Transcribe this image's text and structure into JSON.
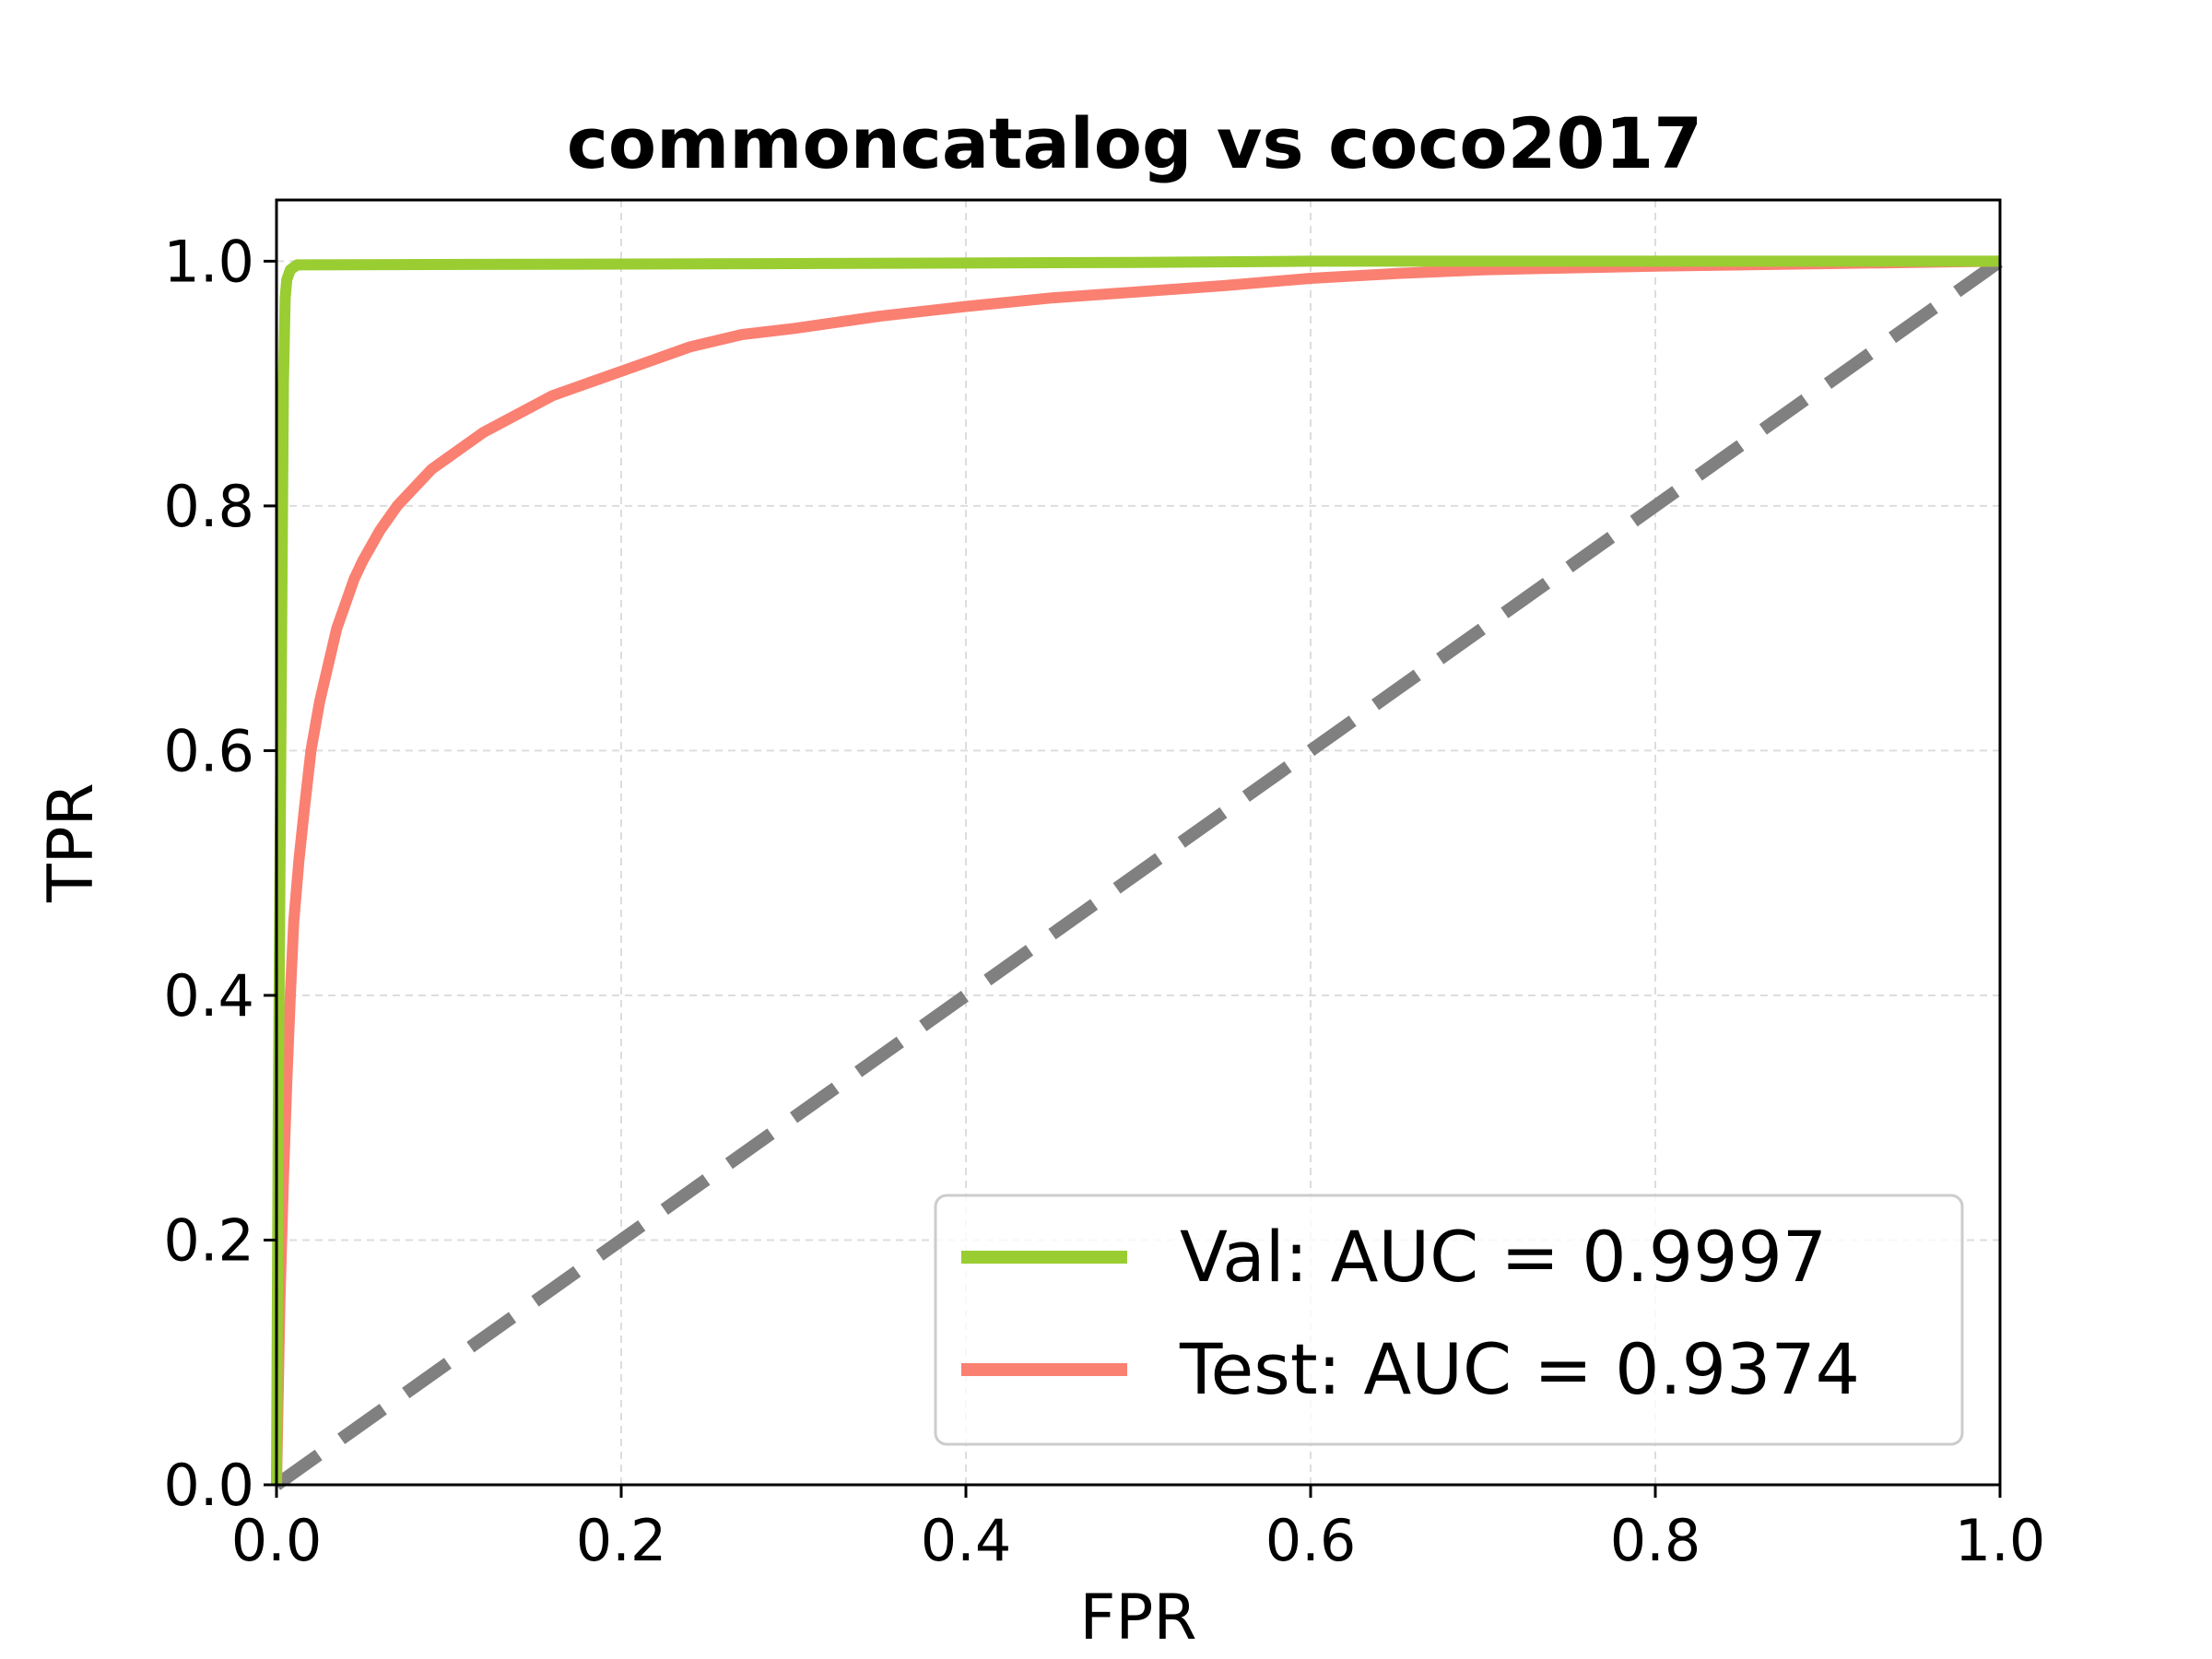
{
  "chart_data": {
    "type": "line",
    "title": "commoncatalog vs coco2017",
    "xlabel": "FPR",
    "ylabel": "TPR",
    "xlim": [
      0,
      1
    ],
    "ylim": [
      0,
      1.05
    ],
    "xticks": [
      "0.0",
      "0.2",
      "0.4",
      "0.6",
      "0.8",
      "1.0"
    ],
    "yticks": [
      "0.0",
      "0.2",
      "0.4",
      "0.6",
      "0.8",
      "1.0"
    ],
    "grid": true,
    "legend_position": "lower-right",
    "series": [
      {
        "name": "Val: AUC = 0.9997",
        "color": "#9acd32",
        "style": "solid",
        "x": [
          0.0,
          0.001,
          0.003,
          0.004,
          0.005,
          0.006,
          0.008,
          0.012,
          0.3,
          0.5,
          0.6,
          1.0
        ],
        "y": [
          0.0,
          0.3,
          0.7,
          0.9,
          0.97,
          0.985,
          0.993,
          0.997,
          0.998,
          0.999,
          1.0,
          1.0
        ]
      },
      {
        "name": "Test: AUC = 0.9374",
        "color": "#fa8072",
        "style": "solid",
        "x": [
          0.0,
          0.002,
          0.004,
          0.006,
          0.008,
          0.01,
          0.013,
          0.016,
          0.02,
          0.025,
          0.03,
          0.035,
          0.04,
          0.045,
          0.05,
          0.06,
          0.07,
          0.08,
          0.09,
          0.1,
          0.12,
          0.14,
          0.16,
          0.18,
          0.2,
          0.22,
          0.24,
          0.27,
          0.3,
          0.35,
          0.4,
          0.45,
          0.5,
          0.55,
          0.6,
          0.65,
          0.7,
          0.8,
          0.9,
          1.0
        ],
        "y": [
          0.0,
          0.15,
          0.25,
          0.33,
          0.4,
          0.46,
          0.51,
          0.55,
          0.6,
          0.64,
          0.67,
          0.7,
          0.72,
          0.74,
          0.755,
          0.78,
          0.8,
          0.815,
          0.83,
          0.84,
          0.86,
          0.875,
          0.89,
          0.9,
          0.91,
          0.92,
          0.93,
          0.94,
          0.945,
          0.955,
          0.963,
          0.97,
          0.975,
          0.98,
          0.986,
          0.99,
          0.993,
          0.996,
          0.998,
          1.0
        ]
      },
      {
        "name": "",
        "color": "#808080",
        "style": "dashed",
        "x": [
          0,
          1
        ],
        "y": [
          0,
          1
        ]
      }
    ]
  }
}
